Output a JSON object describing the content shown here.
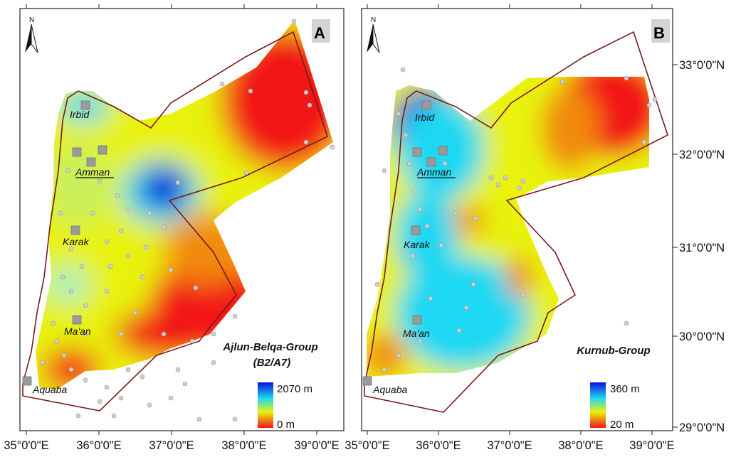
{
  "x_axis_ticks": [
    "35°0'0\"E",
    "36°0'0\"E",
    "37°0'0\"E",
    "38°0'0\"E",
    "39°0'0\"E"
  ],
  "y_axis_ticks": [
    "33°0'0\"N",
    "32°0'0\"N",
    "31°0'0\"N",
    "30°0'0\"N",
    "29°0'0\"N"
  ],
  "north_arrow_label": "N",
  "colors": {
    "high": "#0b10d8",
    "mid_high": "#1fd8f2",
    "mid": "#e8f20a",
    "low": "#f21818",
    "boundary": "#7a1a1a",
    "well_point": "#cfcfcf",
    "city_marker": "#9a9a9a"
  },
  "panels": [
    {
      "letter": "A",
      "title_line1": "Ajlun-Belqa-Group",
      "title_line2": "(B2/A7)",
      "legend_max": "2070 m",
      "legend_min": "0 m",
      "cities": [
        {
          "name": "Irbid",
          "underline": false
        },
        {
          "name": "Amman",
          "underline": true
        },
        {
          "name": "Karak",
          "underline": false
        },
        {
          "name": "Ma'an",
          "underline": false
        },
        {
          "name": "Aquaba",
          "underline": false
        }
      ]
    },
    {
      "letter": "B",
      "title_line1": "Kurnub-Group",
      "title_line2": "",
      "legend_max": "360 m",
      "legend_min": "20 m",
      "cities": [
        {
          "name": "Irbid",
          "underline": false
        },
        {
          "name": "Amman",
          "underline": true
        },
        {
          "name": "Karak",
          "underline": false
        },
        {
          "name": "Ma'an",
          "underline": false
        },
        {
          "name": "Aquaba",
          "underline": false
        }
      ]
    }
  ]
}
